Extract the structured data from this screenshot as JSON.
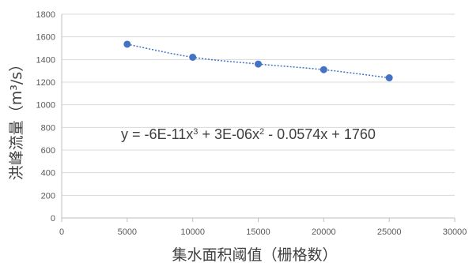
{
  "chart_data": {
    "type": "scatter",
    "title": "",
    "xlabel": "集水面积阈值（栅格数）",
    "ylabel": "洪峰流量（m³/s）",
    "xlim": [
      0,
      30000
    ],
    "ylim": [
      0,
      1800
    ],
    "x_ticks": [
      "0",
      "5000",
      "10000",
      "15000",
      "20000",
      "25000",
      "30000"
    ],
    "y_ticks": [
      "0",
      "200",
      "400",
      "600",
      "800",
      "1000",
      "1200",
      "1400",
      "1600",
      "1800"
    ],
    "grid": "horizontal",
    "series": [
      {
        "x": [
          5000,
          10000,
          15000,
          20000,
          25000
        ],
        "y": [
          1535,
          1420,
          1360,
          1310,
          1238
        ],
        "marker_color": "#4472C4"
      }
    ],
    "trendline": {
      "kind": "polynomial-3",
      "coefficients": [
        -6e-11,
        3e-06,
        -0.0574,
        1760
      ],
      "line_style": "dotted",
      "color": "#4472C4"
    },
    "annotation": {
      "equation_text": "y = -6E-11x³ + 3E-06x² - 0.0574x + 1760"
    }
  }
}
